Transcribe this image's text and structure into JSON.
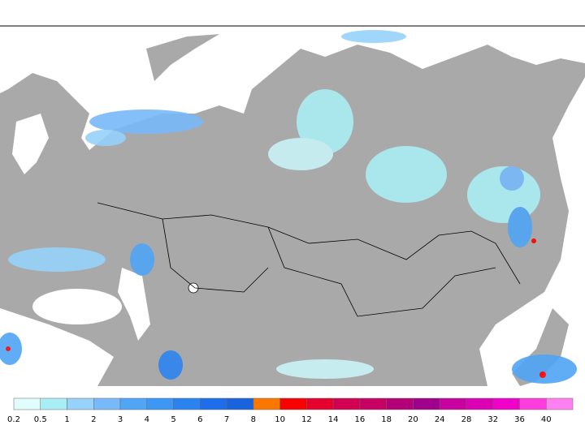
{
  "colorbar": {
    "labels": [
      "0.2",
      "0.5",
      "1",
      "2",
      "3",
      "4",
      "5",
      "6",
      "7",
      "8",
      "10",
      "12",
      "14",
      "16",
      "18",
      "20",
      "24",
      "28",
      "32",
      "36",
      "40"
    ],
    "colors": [
      "#e1fcfc",
      "#aaeef5",
      "#96d2fa",
      "#78b9fa",
      "#50a5f5",
      "#3c97f5",
      "#2b83f0",
      "#1e6eeb",
      "#1964dc",
      "#fa7800",
      "#fa0000",
      "#e6002d",
      "#d20050",
      "#c80064",
      "#b40078",
      "#a0008c",
      "#c800a0",
      "#dc00b4",
      "#f000c8",
      "#ff3cdc",
      "#ff80f0"
    ]
  }
}
